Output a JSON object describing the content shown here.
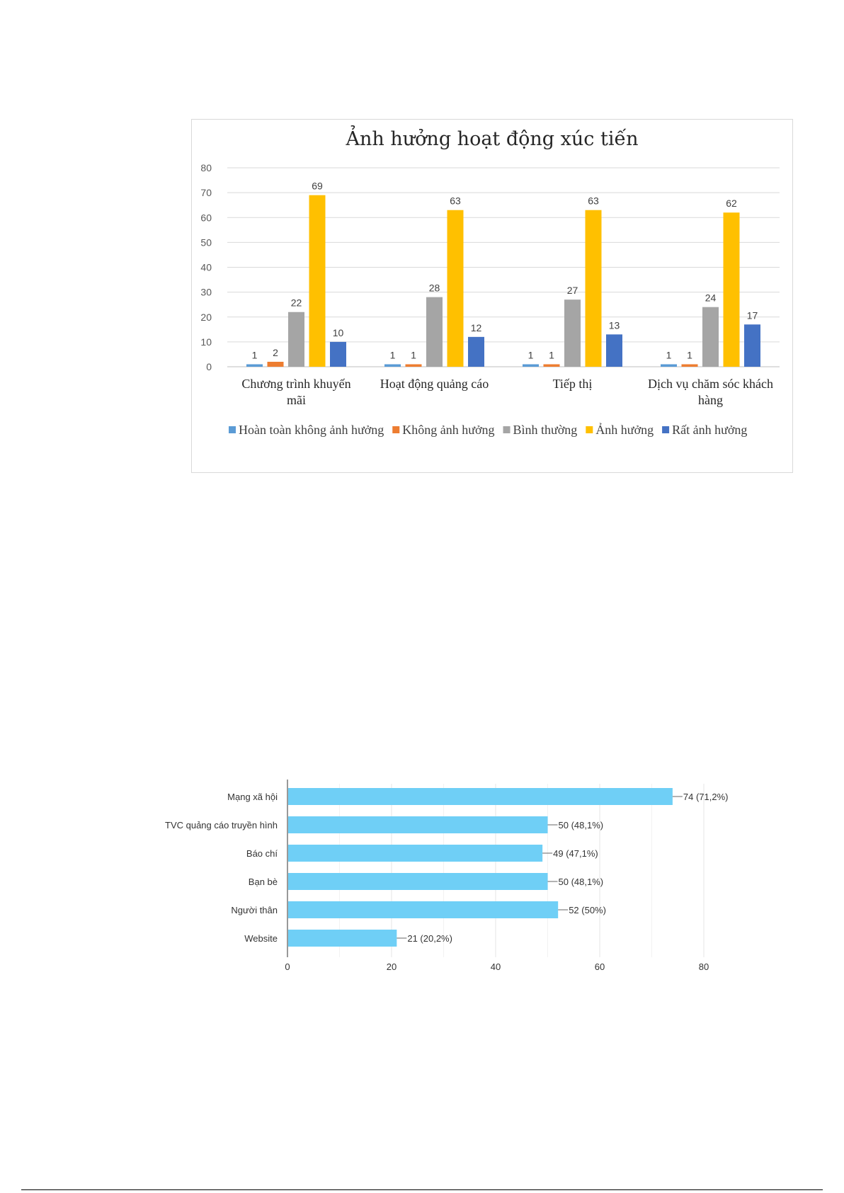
{
  "charts": {
    "promo": {
      "chart_data": {
        "type": "bar",
        "title": "Ảnh hưởng hoạt động xúc tiến",
        "categories": [
          [
            "Chương trình khuyến",
            "mãi"
          ],
          [
            "Hoạt động quảng cáo"
          ],
          [
            "Tiếp thị"
          ],
          [
            "Dịch vụ chăm sóc khách",
            "hàng"
          ]
        ],
        "series": [
          {
            "name": "Hoàn toàn không ảnh hưởng",
            "color": "#5b9bd5",
            "values": [
              1,
              1,
              1,
              1
            ]
          },
          {
            "name": "Không ảnh hưởng",
            "color": "#ed7d31",
            "values": [
              2,
              1,
              1,
              1
            ]
          },
          {
            "name": "Bình thường",
            "color": "#a5a5a5",
            "values": [
              22,
              28,
              27,
              24
            ]
          },
          {
            "name": "Ảnh hưởng",
            "color": "#ffc000",
            "values": [
              69,
              63,
              63,
              62
            ]
          },
          {
            "name": "Rất ảnh hưởng",
            "color": "#4472c4",
            "values": [
              10,
              12,
              13,
              17
            ]
          }
        ],
        "ylim": [
          0,
          80
        ],
        "yticks": [
          0,
          10,
          20,
          30,
          40,
          50,
          60,
          70,
          80
        ],
        "grid": true,
        "legend": "bottom",
        "data_labels": true
      }
    },
    "channels": {
      "chart_data": {
        "type": "bar",
        "orientation": "horizontal",
        "categories": [
          "Mạng xã hội",
          "TVC quảng cáo truyền hình",
          "Báo chí",
          "Bạn bè",
          "Người thân",
          "Website"
        ],
        "values": [
          74,
          50,
          49,
          50,
          52,
          21
        ],
        "labels": [
          "74 (71,2%)",
          "50 (48,1%)",
          "49 (47,1%)",
          "50 (48,1%)",
          "52 (50%)",
          "21 (20,2%)"
        ],
        "xlim": [
          0,
          80
        ],
        "xticks": [
          0,
          20,
          40,
          60,
          80
        ],
        "color": "#6fcff6",
        "grid": true
      }
    }
  }
}
